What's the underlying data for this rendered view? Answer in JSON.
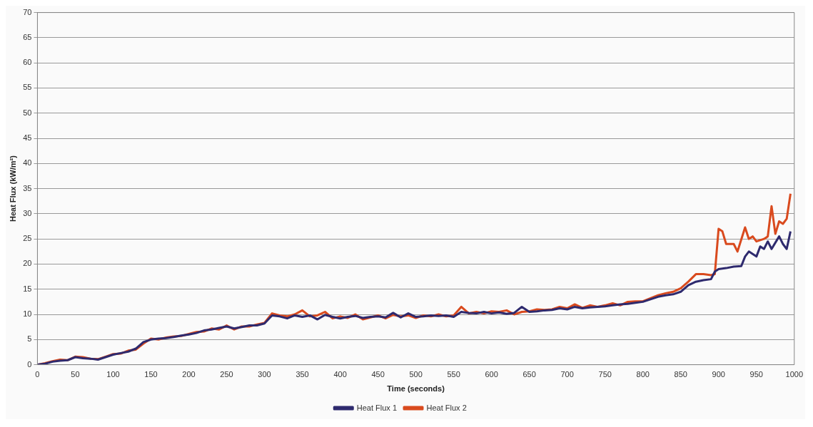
{
  "chart_data": {
    "type": "line",
    "xlabel": "Time (seconds)",
    "ylabel": "Heat Flux (kW/m²)",
    "xlim": [
      0,
      1000
    ],
    "xticks": [
      0,
      50,
      100,
      150,
      200,
      250,
      300,
      350,
      400,
      450,
      500,
      550,
      600,
      650,
      700,
      750,
      800,
      850,
      900,
      950,
      1000
    ],
    "ylim": [
      0,
      70
    ],
    "yticks": [
      0,
      5,
      10,
      15,
      20,
      25,
      30,
      35,
      40,
      45,
      50,
      55,
      60,
      65,
      70
    ],
    "grid": "y",
    "legend": "bottom",
    "marker": "none",
    "line_style": "solid",
    "series": [
      {
        "name": "Heat Flux 1",
        "color": "#2e2a6e",
        "x": [
          0,
          10,
          20,
          30,
          40,
          50,
          60,
          70,
          80,
          90,
          100,
          110,
          120,
          130,
          140,
          150,
          160,
          170,
          180,
          190,
          200,
          210,
          220,
          230,
          240,
          250,
          260,
          270,
          280,
          290,
          300,
          310,
          320,
          330,
          340,
          350,
          360,
          370,
          380,
          390,
          400,
          410,
          420,
          430,
          440,
          450,
          460,
          470,
          480,
          490,
          500,
          510,
          520,
          530,
          540,
          550,
          560,
          570,
          580,
          590,
          600,
          610,
          620,
          630,
          640,
          650,
          660,
          670,
          680,
          690,
          700,
          710,
          720,
          730,
          740,
          750,
          760,
          770,
          780,
          790,
          800,
          810,
          820,
          830,
          840,
          850,
          860,
          870,
          880,
          890,
          895,
          900,
          910,
          920,
          930,
          935,
          940,
          950,
          955,
          960,
          965,
          970,
          980,
          985,
          990,
          995
        ],
        "values": [
          0,
          0.2,
          0.6,
          0.8,
          0.9,
          1.5,
          1.3,
          1.2,
          1.0,
          1.5,
          2.0,
          2.3,
          2.6,
          3.2,
          4.5,
          5.0,
          5.2,
          5.3,
          5.5,
          5.8,
          6.0,
          6.3,
          6.8,
          7.0,
          7.3,
          7.6,
          7.2,
          7.5,
          7.8,
          7.8,
          8.2,
          9.8,
          9.6,
          9.2,
          9.8,
          9.5,
          9.8,
          9.0,
          9.9,
          9.5,
          9.2,
          9.5,
          9.7,
          9.3,
          9.5,
          9.6,
          9.4,
          10.3,
          9.4,
          10.2,
          9.5,
          9.6,
          9.8,
          9.7,
          9.8,
          9.5,
          10.5,
          10.3,
          10.2,
          10.5,
          10.2,
          10.4,
          10.1,
          10.3,
          11.5,
          10.5,
          10.6,
          10.8,
          10.9,
          11.2,
          11.0,
          11.5,
          11.2,
          11.4,
          11.5,
          11.6,
          11.8,
          12.0,
          12.1,
          12.3,
          12.5,
          13.0,
          13.5,
          13.8,
          14.0,
          14.5,
          15.8,
          16.5,
          16.8,
          17.0,
          18.5,
          19.0,
          19.2,
          19.5,
          19.6,
          21.5,
          22.5,
          21.5,
          23.5,
          23.0,
          24.5,
          23.0,
          25.5,
          24.0,
          23.0,
          26.5
        ]
      },
      {
        "name": "Heat Flux 2",
        "color": "#d94a1e",
        "x": [
          0,
          10,
          20,
          30,
          40,
          50,
          60,
          70,
          80,
          90,
          100,
          110,
          120,
          130,
          140,
          150,
          160,
          170,
          180,
          190,
          200,
          210,
          220,
          230,
          240,
          250,
          260,
          270,
          280,
          290,
          300,
          310,
          320,
          330,
          340,
          350,
          360,
          370,
          380,
          390,
          400,
          410,
          420,
          430,
          440,
          450,
          460,
          470,
          480,
          490,
          500,
          510,
          520,
          530,
          540,
          550,
          560,
          570,
          580,
          590,
          600,
          610,
          620,
          630,
          640,
          650,
          660,
          670,
          680,
          690,
          700,
          710,
          720,
          730,
          740,
          750,
          760,
          770,
          780,
          790,
          800,
          810,
          820,
          830,
          840,
          850,
          860,
          870,
          880,
          890,
          895,
          900,
          905,
          910,
          920,
          925,
          935,
          940,
          945,
          950,
          960,
          965,
          970,
          975,
          980,
          985,
          990,
          995
        ],
        "values": [
          0,
          0.3,
          0.7,
          1.0,
          0.9,
          1.6,
          1.5,
          1.2,
          1.1,
          1.6,
          2.1,
          2.2,
          2.8,
          3.0,
          4.2,
          5.2,
          5.0,
          5.4,
          5.6,
          5.7,
          6.1,
          6.5,
          6.6,
          7.2,
          7.0,
          7.8,
          7.0,
          7.6,
          7.6,
          8.0,
          8.3,
          10.2,
          9.8,
          9.6,
          10.0,
          10.8,
          9.6,
          9.8,
          10.5,
          9.2,
          9.6,
          9.3,
          10.0,
          9.0,
          9.4,
          9.8,
          9.2,
          9.9,
          9.6,
          9.8,
          9.3,
          9.8,
          9.6,
          10.0,
          9.6,
          9.8,
          11.5,
          10.2,
          10.5,
          10.2,
          10.6,
          10.5,
          10.8,
          10.0,
          10.5,
          10.6,
          11.0,
          10.9,
          11.0,
          11.5,
          11.2,
          12.0,
          11.3,
          11.8,
          11.5,
          11.8,
          12.2,
          11.8,
          12.5,
          12.6,
          12.6,
          13.2,
          13.8,
          14.2,
          14.5,
          15.2,
          16.5,
          18.0,
          18.0,
          17.8,
          18.0,
          27.0,
          26.5,
          24.0,
          24.0,
          22.5,
          27.3,
          25.0,
          25.5,
          24.5,
          25.0,
          25.5,
          31.5,
          26.0,
          28.5,
          28.0,
          29.0,
          34.0
        ]
      }
    ]
  }
}
